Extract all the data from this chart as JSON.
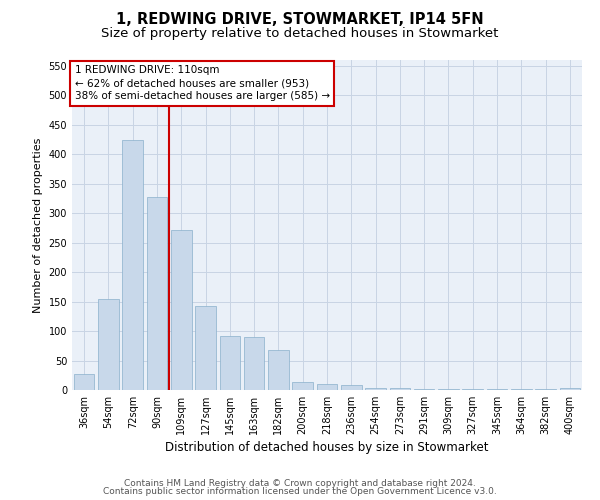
{
  "title": "1, REDWING DRIVE, STOWMARKET, IP14 5FN",
  "subtitle": "Size of property relative to detached houses in Stowmarket",
  "xlabel": "Distribution of detached houses by size in Stowmarket",
  "ylabel": "Number of detached properties",
  "categories": [
    "36sqm",
    "54sqm",
    "72sqm",
    "90sqm",
    "109sqm",
    "127sqm",
    "145sqm",
    "163sqm",
    "182sqm",
    "200sqm",
    "218sqm",
    "236sqm",
    "254sqm",
    "273sqm",
    "291sqm",
    "309sqm",
    "327sqm",
    "345sqm",
    "364sqm",
    "382sqm",
    "400sqm"
  ],
  "values": [
    27,
    155,
    425,
    328,
    271,
    143,
    92,
    90,
    68,
    13,
    10,
    8,
    4,
    4,
    2,
    2,
    1,
    1,
    1,
    1,
    4
  ],
  "bar_color": "#c8d8ea",
  "bar_edge_color": "#8ab0cc",
  "vline_x_index": 4,
  "vline_color": "#cc0000",
  "annotation_line1": "1 REDWING DRIVE: 110sqm",
  "annotation_line2": "← 62% of detached houses are smaller (953)",
  "annotation_line3": "38% of semi-detached houses are larger (585) →",
  "annotation_box_color": "#cc0000",
  "annotation_box_bg": "#ffffff",
  "ylim": [
    0,
    560
  ],
  "yticks": [
    0,
    50,
    100,
    150,
    200,
    250,
    300,
    350,
    400,
    450,
    500,
    550
  ],
  "grid_color": "#c8d4e4",
  "bg_color": "#eaf0f8",
  "footer_line1": "Contains HM Land Registry data © Crown copyright and database right 2024.",
  "footer_line2": "Contains public sector information licensed under the Open Government Licence v3.0.",
  "title_fontsize": 10.5,
  "subtitle_fontsize": 9.5,
  "xlabel_fontsize": 8.5,
  "ylabel_fontsize": 8,
  "tick_fontsize": 7,
  "annot_fontsize": 7.5,
  "footer_fontsize": 6.5
}
